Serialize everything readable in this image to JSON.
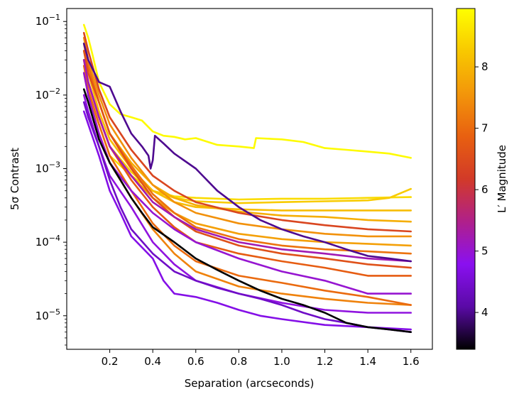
{
  "chart_data": {
    "type": "line",
    "title": "",
    "xlabel": "Separation (arcseconds)",
    "ylabel": "5σ Contrast",
    "y_scale": "log",
    "xlim": [
      0.0,
      1.7
    ],
    "ylim": [
      3.5e-06,
      0.15
    ],
    "x_ticks": [
      0.2,
      0.4,
      0.6,
      0.8,
      1.0,
      1.2,
      1.4,
      1.6
    ],
    "x_tick_labels": [
      "0.2",
      "0.4",
      "0.6",
      "0.8",
      "1.0",
      "1.2",
      "1.4",
      "1.6"
    ],
    "y_ticks": [
      1e-05,
      0.0001,
      0.001,
      0.01,
      0.1
    ],
    "y_tick_labels": [
      "10−5",
      "10−4",
      "10−3",
      "10−2",
      "10−1"
    ],
    "colorbar": {
      "label": "L′ Magnitude",
      "range": [
        3.4,
        8.95
      ],
      "ticks": [
        4,
        5,
        6,
        7,
        8
      ],
      "tick_labels": [
        "4",
        "5",
        "6",
        "7",
        "8"
      ],
      "colormap_stops": [
        "#000000",
        "#5a0aa6",
        "#8a10f0",
        "#b0208a",
        "#d23a28",
        "#e86010",
        "#f3960a",
        "#f8c800",
        "#ffff00"
      ]
    },
    "series": [
      {
        "name": "L′=8.9",
        "mag": 8.9,
        "x": [
          0.08,
          0.1,
          0.12,
          0.15,
          0.2,
          0.25,
          0.3,
          0.35,
          0.4,
          0.45,
          0.5,
          0.55,
          0.6,
          0.7,
          0.8,
          0.87,
          0.88,
          1.0,
          1.1,
          1.2,
          1.3,
          1.4,
          1.5,
          1.6
        ],
        "y": [
          0.09,
          0.06,
          0.035,
          0.015,
          0.0075,
          0.0055,
          0.005,
          0.0045,
          0.0032,
          0.0028,
          0.0027,
          0.0025,
          0.0026,
          0.0021,
          0.002,
          0.0019,
          0.0026,
          0.0025,
          0.0023,
          0.0019,
          0.0018,
          0.0017,
          0.0016,
          0.0014
        ]
      },
      {
        "name": "L′=3.4",
        "mag": 3.4,
        "x": [
          0.08,
          0.1,
          0.12,
          0.15,
          0.2,
          0.25,
          0.3,
          0.35,
          0.4,
          0.5,
          0.6,
          0.7,
          0.8,
          0.9,
          1.0,
          1.1,
          1.2,
          1.3,
          1.4,
          1.5,
          1.6
        ],
        "y": [
          0.012,
          0.008,
          0.005,
          0.0025,
          0.0012,
          0.0007,
          0.0004,
          0.00025,
          0.00016,
          0.0001,
          6e-05,
          4.2e-05,
          3e-05,
          2.2e-05,
          1.7e-05,
          1.4e-05,
          1.1e-05,
          8e-06,
          7e-06,
          6.5e-06,
          6e-06
        ]
      },
      {
        "name": "L′=4.0",
        "mag": 4.0,
        "x": [
          0.08,
          0.1,
          0.15,
          0.2,
          0.25,
          0.3,
          0.35,
          0.38,
          0.39,
          0.4,
          0.41,
          0.45,
          0.5,
          0.6,
          0.7,
          0.8,
          0.9,
          1.0,
          1.1,
          1.2,
          1.3,
          1.4,
          1.5,
          1.6
        ],
        "y": [
          0.05,
          0.03,
          0.015,
          0.013,
          0.006,
          0.003,
          0.002,
          0.0015,
          0.001,
          0.0013,
          0.0028,
          0.0022,
          0.0016,
          0.001,
          0.0005,
          0.0003,
          0.0002,
          0.00015,
          0.00012,
          0.0001,
          8e-05,
          6.5e-05,
          6e-05,
          5.5e-05
        ]
      },
      {
        "name": "L′=4.4",
        "mag": 4.4,
        "x": [
          0.08,
          0.1,
          0.15,
          0.2,
          0.25,
          0.3,
          0.4,
          0.5,
          0.6,
          0.7,
          0.8,
          0.9,
          1.0,
          1.1,
          1.2,
          1.3,
          1.4,
          1.5,
          1.6
        ],
        "y": [
          0.008,
          0.005,
          0.002,
          0.0007,
          0.0003,
          0.00015,
          7e-05,
          4e-05,
          3e-05,
          2.4e-05,
          2e-05,
          1.7e-05,
          1.4e-05,
          1.1e-05,
          9e-06,
          8e-06,
          7e-06,
          6.5e-06,
          6e-06
        ]
      },
      {
        "name": "L′=4.7",
        "mag": 4.7,
        "x": [
          0.08,
          0.1,
          0.15,
          0.2,
          0.25,
          0.3,
          0.4,
          0.45,
          0.5,
          0.6,
          0.7,
          0.8,
          0.9,
          1.0,
          1.2,
          1.4,
          1.6
        ],
        "y": [
          0.006,
          0.004,
          0.0015,
          0.0005,
          0.00025,
          0.00012,
          6e-05,
          3e-05,
          2e-05,
          1.8e-05,
          1.5e-05,
          1.2e-05,
          1e-05,
          9e-06,
          7.5e-06,
          7e-06,
          6.5e-06
        ]
      },
      {
        "name": "L′=4.9",
        "mag": 4.9,
        "x": [
          0.08,
          0.1,
          0.15,
          0.2,
          0.3,
          0.4,
          0.5,
          0.6,
          0.8,
          1.0,
          1.2,
          1.4,
          1.6
        ],
        "y": [
          0.01,
          0.006,
          0.002,
          0.0008,
          0.0003,
          0.0001,
          5e-05,
          3e-05,
          2e-05,
          1.5e-05,
          1.2e-05,
          1.1e-05,
          1.1e-05
        ]
      },
      {
        "name": "L′=5.0",
        "mag": 5.0,
        "x": [
          0.08,
          0.1,
          0.15,
          0.2,
          0.3,
          0.4,
          0.5,
          0.6,
          0.8,
          1.0,
          1.2,
          1.4,
          1.6
        ],
        "y": [
          0.02,
          0.01,
          0.003,
          0.0012,
          0.0005,
          0.00025,
          0.00015,
          0.0001,
          6e-05,
          4e-05,
          3e-05,
          2e-05,
          2e-05
        ]
      },
      {
        "name": "L′=5.2",
        "mag": 5.2,
        "x": [
          0.08,
          0.1,
          0.15,
          0.2,
          0.3,
          0.4,
          0.5,
          0.6,
          0.8,
          1.0,
          1.2,
          1.4,
          1.6
        ],
        "y": [
          0.03,
          0.015,
          0.005,
          0.002,
          0.0008,
          0.00035,
          0.00022,
          0.00015,
          0.0001,
          8e-05,
          7e-05,
          6e-05,
          5.5e-05
        ]
      },
      {
        "name": "L′=6.4",
        "mag": 6.4,
        "x": [
          0.08,
          0.1,
          0.15,
          0.2,
          0.3,
          0.4,
          0.5,
          0.6,
          0.8,
          1.0,
          1.2,
          1.4,
          1.6
        ],
        "y": [
          0.07,
          0.04,
          0.012,
          0.005,
          0.0018,
          0.0008,
          0.0005,
          0.00035,
          0.00025,
          0.0002,
          0.00017,
          0.00015,
          0.00014
        ]
      },
      {
        "name": "L′=6.6",
        "mag": 6.6,
        "x": [
          0.08,
          0.1,
          0.15,
          0.2,
          0.3,
          0.4,
          0.5,
          0.6,
          0.8,
          1.0,
          1.2,
          1.4,
          1.6
        ],
        "y": [
          0.04,
          0.02,
          0.008,
          0.003,
          0.001,
          0.0004,
          0.00022,
          0.00014,
          9e-05,
          7e-05,
          6e-05,
          5e-05,
          4.5e-05
        ]
      },
      {
        "name": "L′=6.8",
        "mag": 6.8,
        "x": [
          0.08,
          0.1,
          0.15,
          0.2,
          0.3,
          0.4,
          0.5,
          0.6,
          0.8,
          1.0,
          1.2,
          1.4,
          1.6
        ],
        "y": [
          0.03,
          0.015,
          0.005,
          0.002,
          0.0007,
          0.0003,
          0.00016,
          0.0001,
          7e-05,
          5.5e-05,
          4.5e-05,
          3.5e-05,
          3.5e-05
        ]
      },
      {
        "name": "L′=7.0",
        "mag": 7.0,
        "x": [
          0.08,
          0.1,
          0.15,
          0.2,
          0.3,
          0.4,
          0.5,
          0.6,
          0.8,
          1.0,
          1.2,
          1.4,
          1.6
        ],
        "y": [
          0.025,
          0.012,
          0.004,
          0.0015,
          0.0005,
          0.00018,
          9e-05,
          5.5e-05,
          3.5e-05,
          2.8e-05,
          2.2e-05,
          1.8e-05,
          1.4e-05
        ]
      },
      {
        "name": "L′=7.1",
        "mag": 7.1,
        "x": [
          0.08,
          0.1,
          0.15,
          0.2,
          0.3,
          0.4,
          0.5,
          0.6,
          0.8,
          1.0,
          1.2,
          1.4,
          1.6
        ],
        "y": [
          0.05,
          0.025,
          0.008,
          0.003,
          0.0011,
          0.00045,
          0.00025,
          0.00016,
          0.00011,
          9e-05,
          8e-05,
          7.5e-05,
          7e-05
        ]
      },
      {
        "name": "L′=7.3",
        "mag": 7.3,
        "x": [
          0.08,
          0.1,
          0.15,
          0.2,
          0.3,
          0.4,
          0.5,
          0.6,
          0.8,
          1.0,
          1.2,
          1.4,
          1.6
        ],
        "y": [
          0.02,
          0.01,
          0.003,
          0.0012,
          0.0004,
          0.00015,
          7e-05,
          4e-05,
          2.5e-05,
          2e-05,
          1.7e-05,
          1.5e-05,
          1.4e-05
        ]
      },
      {
        "name": "L′=7.5",
        "mag": 7.5,
        "x": [
          0.08,
          0.1,
          0.15,
          0.2,
          0.3,
          0.4,
          0.5,
          0.6,
          0.8,
          1.0,
          1.2,
          1.4,
          1.6
        ],
        "y": [
          0.06,
          0.03,
          0.01,
          0.004,
          0.0014,
          0.0006,
          0.00035,
          0.00025,
          0.00018,
          0.00015,
          0.00013,
          0.00012,
          0.00012
        ]
      },
      {
        "name": "L′=7.7",
        "mag": 7.7,
        "x": [
          0.08,
          0.1,
          0.15,
          0.2,
          0.3,
          0.4,
          0.5,
          0.6,
          0.8,
          1.0,
          1.2,
          1.4,
          1.6
        ],
        "y": [
          0.03,
          0.015,
          0.005,
          0.002,
          0.0008,
          0.0004,
          0.00025,
          0.00018,
          0.00013,
          0.00011,
          0.0001,
          9.5e-05,
          9e-05
        ]
      },
      {
        "name": "L′=7.9",
        "mag": 7.9,
        "x": [
          0.08,
          0.1,
          0.15,
          0.2,
          0.3,
          0.4,
          0.5,
          0.6,
          0.8,
          1.0,
          1.2,
          1.4,
          1.6
        ],
        "y": [
          0.05,
          0.025,
          0.008,
          0.003,
          0.0012,
          0.0006,
          0.0004,
          0.00032,
          0.00026,
          0.00023,
          0.00022,
          0.0002,
          0.00019
        ]
      },
      {
        "name": "L′=8.1",
        "mag": 8.1,
        "x": [
          0.08,
          0.1,
          0.15,
          0.2,
          0.3,
          0.4,
          0.5,
          0.6,
          0.8,
          1.0,
          1.2,
          1.4,
          1.6
        ],
        "y": [
          0.04,
          0.02,
          0.006,
          0.0025,
          0.001,
          0.0005,
          0.00035,
          0.0003,
          0.00028,
          0.00027,
          0.00027,
          0.00027,
          0.00027
        ]
      },
      {
        "name": "L′=8.3",
        "mag": 8.3,
        "x": [
          0.08,
          0.1,
          0.15,
          0.2,
          0.3,
          0.4,
          0.5,
          0.6,
          0.8,
          1.0,
          1.2,
          1.4,
          1.5,
          1.6
        ],
        "y": [
          0.03,
          0.015,
          0.005,
          0.002,
          0.0009,
          0.0005,
          0.0004,
          0.00036,
          0.00034,
          0.00035,
          0.00036,
          0.00037,
          0.0004,
          0.00053
        ]
      },
      {
        "name": "L′=8.5",
        "mag": 8.5,
        "x": [
          0.08,
          0.1,
          0.15,
          0.2,
          0.3,
          0.4,
          0.5,
          0.6,
          0.8,
          1.0,
          1.2,
          1.4,
          1.6
        ],
        "y": [
          0.02,
          0.01,
          0.004,
          0.0015,
          0.0008,
          0.0005,
          0.00042,
          0.0004,
          0.00038,
          0.00039,
          0.00039,
          0.0004,
          0.00041
        ]
      }
    ]
  }
}
